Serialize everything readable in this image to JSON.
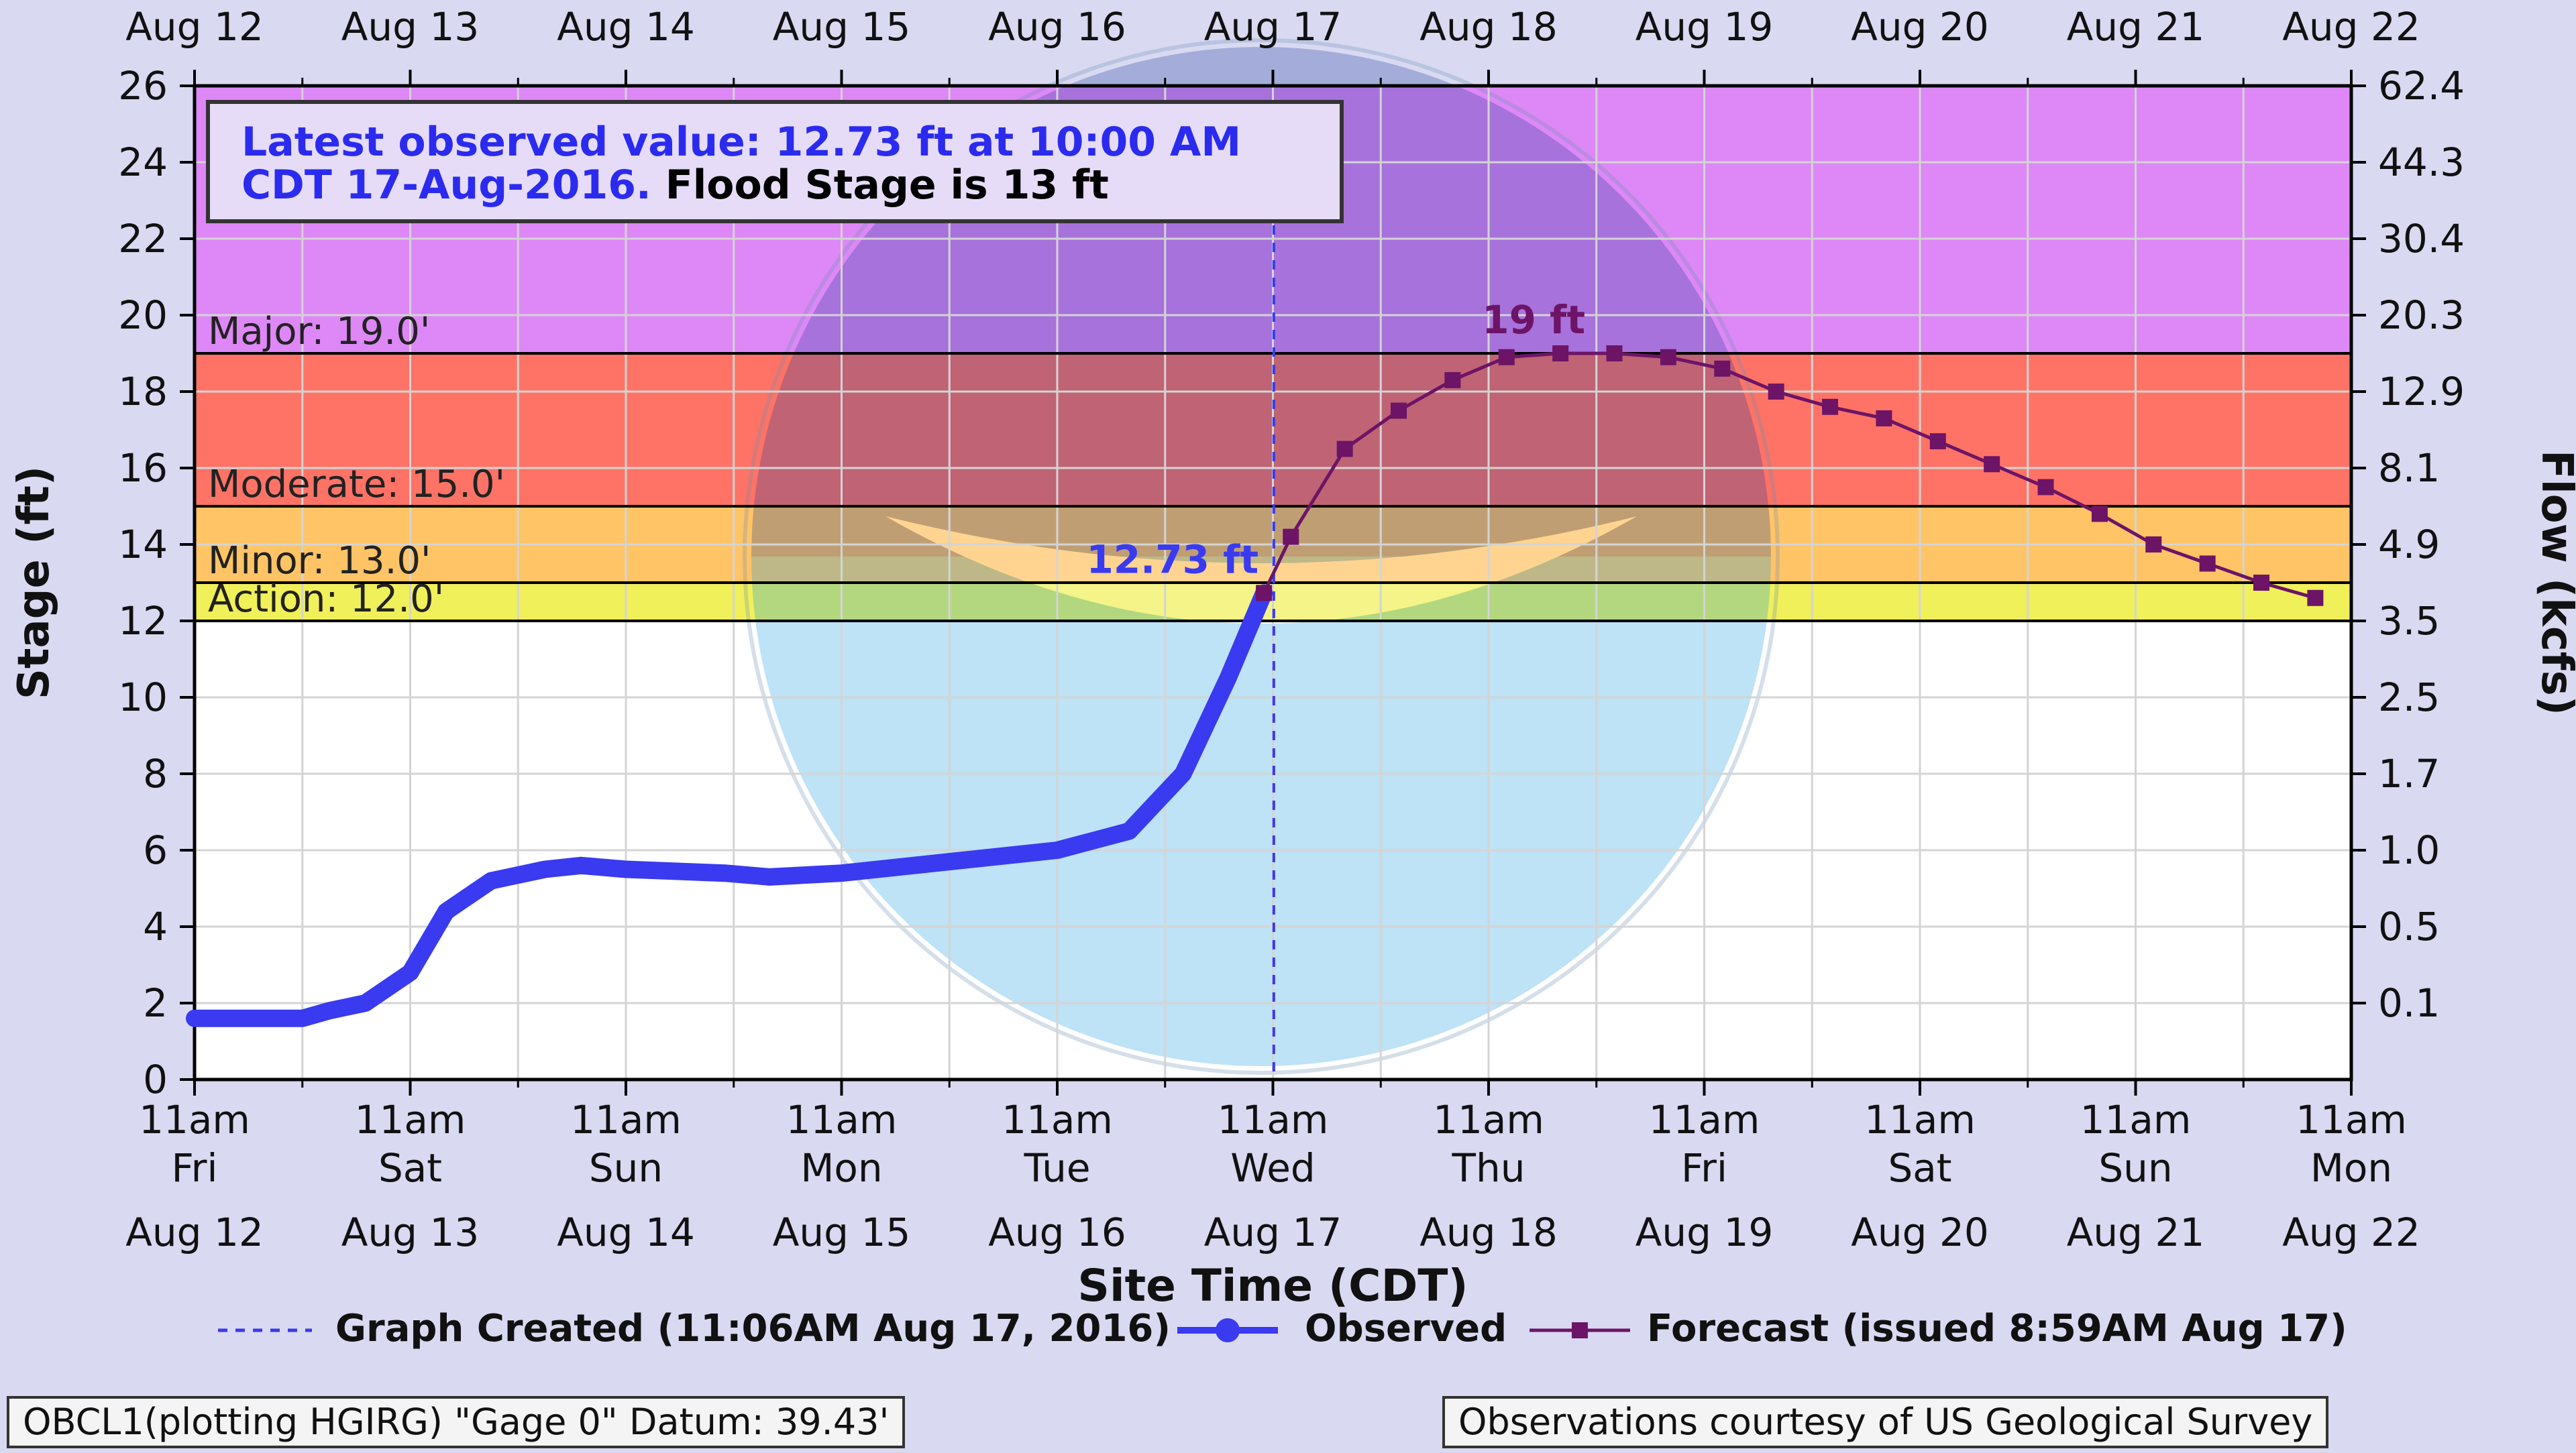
{
  "colors": {
    "background": "#d9d9f2",
    "major_band": "#dd88f6",
    "moderate_band": "#ff7366",
    "minor_band": "#ffc466",
    "action_band": "#f0f05a",
    "observed": "#3a3af0",
    "forecast": "#6d1467",
    "grid": "#d4d4d4",
    "threshold_line": "#000000"
  },
  "chart_data": {
    "type": "line",
    "title": "",
    "xlabel": "Site Time (CDT)",
    "ylabel": "Stage (ft)",
    "ylabel_right": "Flow (kcfs)",
    "ylim": [
      0,
      26
    ],
    "xlim": [
      "2016-08-12 11:00",
      "2016-08-22 11:00"
    ],
    "grid": true,
    "legend_position": "bottom",
    "x_ticks": [
      {
        "time": "11am",
        "day": "Fri",
        "date": "Aug 12"
      },
      {
        "time": "11am",
        "day": "Sat",
        "date": "Aug 13"
      },
      {
        "time": "11am",
        "day": "Sun",
        "date": "Aug 14"
      },
      {
        "time": "11am",
        "day": "Mon",
        "date": "Aug 15"
      },
      {
        "time": "11am",
        "day": "Tue",
        "date": "Aug 16"
      },
      {
        "time": "11am",
        "day": "Wed",
        "date": "Aug 17"
      },
      {
        "time": "11am",
        "day": "Thu",
        "date": "Aug 18"
      },
      {
        "time": "11am",
        "day": "Fri",
        "date": "Aug 19"
      },
      {
        "time": "11am",
        "day": "Sat",
        "date": "Aug 20"
      },
      {
        "time": "11am",
        "day": "Sun",
        "date": "Aug 21"
      },
      {
        "time": "11am",
        "day": "Mon",
        "date": "Aug 22"
      }
    ],
    "y_ticks": [
      0,
      2,
      4,
      6,
      8,
      10,
      12,
      14,
      16,
      18,
      20,
      22,
      24,
      26
    ],
    "y_ticks_right": [
      {
        "stage": 2,
        "label": "0.1"
      },
      {
        "stage": 4,
        "label": "0.5"
      },
      {
        "stage": 6,
        "label": "1.0"
      },
      {
        "stage": 8,
        "label": "1.7"
      },
      {
        "stage": 10,
        "label": "2.5"
      },
      {
        "stage": 12,
        "label": "3.5"
      },
      {
        "stage": 14,
        "label": "4.9"
      },
      {
        "stage": 16,
        "label": "8.1"
      },
      {
        "stage": 18,
        "label": "12.9"
      },
      {
        "stage": 20,
        "label": "20.3"
      },
      {
        "stage": 22,
        "label": "30.4"
      },
      {
        "stage": 24,
        "label": "44.3"
      },
      {
        "stage": 26,
        "label": "62.4"
      }
    ],
    "flood_categories": [
      {
        "name": "Major",
        "label": "Major: 19.0'",
        "from": 19,
        "to": 26,
        "color": "#dd88f6"
      },
      {
        "name": "Moderate",
        "label": "Moderate: 15.0'",
        "from": 15,
        "to": 19,
        "color": "#ff7366"
      },
      {
        "name": "Minor",
        "label": "Minor: 13.0'",
        "from": 13,
        "to": 15,
        "color": "#ffc466"
      },
      {
        "name": "Action",
        "label": "Action: 12.0'",
        "from": 12,
        "to": 13,
        "color": "#f0f05a"
      }
    ],
    "series": [
      {
        "name": "Observed",
        "color": "#3a3af0",
        "points": [
          [
            "2016-08-12 11:00",
            1.6
          ],
          [
            "2016-08-12 23:00",
            1.6
          ],
          [
            "2016-08-13 02:00",
            1.8
          ],
          [
            "2016-08-13 06:00",
            2.0
          ],
          [
            "2016-08-13 11:00",
            2.8
          ],
          [
            "2016-08-13 15:00",
            4.4
          ],
          [
            "2016-08-13 20:00",
            5.2
          ],
          [
            "2016-08-14 02:00",
            5.5
          ],
          [
            "2016-08-14 06:00",
            5.6
          ],
          [
            "2016-08-14 11:00",
            5.5
          ],
          [
            "2016-08-14 22:00",
            5.4
          ],
          [
            "2016-08-15 03:00",
            5.3
          ],
          [
            "2016-08-15 11:00",
            5.4
          ],
          [
            "2016-08-15 23:00",
            5.7
          ],
          [
            "2016-08-16 11:00",
            6.0
          ],
          [
            "2016-08-16 19:00",
            6.5
          ],
          [
            "2016-08-17 01:00",
            8.0
          ],
          [
            "2016-08-17 06:00",
            10.5
          ],
          [
            "2016-08-17 10:00",
            12.73
          ]
        ]
      },
      {
        "name": "Forecast (issued 8:59AM Aug 17)",
        "color": "#6d1467",
        "points": [
          [
            "2016-08-17 10:00",
            12.73
          ],
          [
            "2016-08-17 13:00",
            14.2
          ],
          [
            "2016-08-17 19:00",
            16.5
          ],
          [
            "2016-08-18 01:00",
            17.5
          ],
          [
            "2016-08-18 07:00",
            18.3
          ],
          [
            "2016-08-18 13:00",
            18.9
          ],
          [
            "2016-08-18 19:00",
            19.0
          ],
          [
            "2016-08-19 01:00",
            19.0
          ],
          [
            "2016-08-19 07:00",
            18.9
          ],
          [
            "2016-08-19 13:00",
            18.6
          ],
          [
            "2016-08-19 19:00",
            18.0
          ],
          [
            "2016-08-20 01:00",
            17.6
          ],
          [
            "2016-08-20 07:00",
            17.3
          ],
          [
            "2016-08-20 13:00",
            16.7
          ],
          [
            "2016-08-20 19:00",
            16.1
          ],
          [
            "2016-08-21 01:00",
            15.5
          ],
          [
            "2016-08-21 07:00",
            14.8
          ],
          [
            "2016-08-21 13:00",
            14.0
          ],
          [
            "2016-08-21 19:00",
            13.5
          ],
          [
            "2016-08-22 01:00",
            13.0
          ],
          [
            "2016-08-22 07:00",
            12.6
          ]
        ]
      }
    ],
    "graph_created": "2016-08-17 11:06",
    "annotations": [
      {
        "text": "12.73 ft",
        "x": "2016-08-17 10:00",
        "y": 12.73,
        "series": "Observed"
      },
      {
        "text": "19 ft",
        "x": "2016-08-18 19:00",
        "y": 19.0,
        "series": "Forecast"
      }
    ],
    "info_box": {
      "line1": "Latest observed value: 12.73 ft at 10:00 AM",
      "line2_blue": "CDT 17-Aug-2016.",
      "line2_black": " Flood Stage is 13 ft"
    },
    "legend": {
      "graph_created": "Graph Created (11:06AM Aug 17, 2016)",
      "observed": "Observed",
      "forecast": "Forecast (issued 8:59AM Aug 17)"
    }
  },
  "footer": {
    "left": "OBCL1(plotting HGIRG) \"Gage 0\" Datum: 39.43'",
    "right": "Observations courtesy of US Geological Survey"
  }
}
